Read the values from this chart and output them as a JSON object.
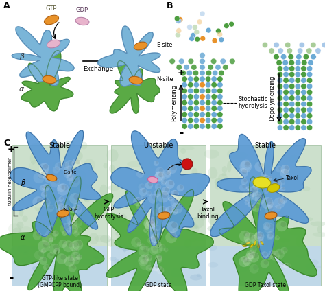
{
  "panel_A_label": "A",
  "panel_B_label": "B",
  "panel_C_label": "C",
  "beta_label": "β",
  "alpha_label": "α",
  "gtp_label": "GTP",
  "gdp_label": "GDP",
  "exchange_label": "Exchange",
  "esite_label": "E-site",
  "nsite_label": "N-site",
  "polymerizing_label": "Polymerizing",
  "depolymerizing_label": "Depolymerizing",
  "stochastic_label": "Stochastic\nhydrolysis",
  "plus_label": "+",
  "minus_label": "-",
  "stable1_label": "Stable",
  "unstable_label": "Unstable",
  "stable2_label": "Stable",
  "gtp_hydrolysis": "GTP\nhydrolysis",
  "taxol_binding": "Taxol\nbinding",
  "state1_label": "GTP-like state\n(GMPCPP bound)",
  "state2_label": "GDP state",
  "state3_label": "GDP Taxol state",
  "taxol_label": "Taxol",
  "tubulin_label": "tubulin heterodimer",
  "blue": "#7ab5d8",
  "green": "#5aaa45",
  "orange": "#e8922a",
  "pink": "#e8b4cc",
  "yellow": "#e8e030",
  "red": "#cc2222",
  "light_green_bg": "#d5ead5",
  "light_blue_bg": "#c5ddf0",
  "dot_green": "#4d9e40",
  "dot_blue": "#6baad5",
  "dot_orange": "#e8922a",
  "dot_light_green": "#a8cc98",
  "dot_light_blue": "#a8c8e8",
  "dot_light_orange": "#f0c888"
}
